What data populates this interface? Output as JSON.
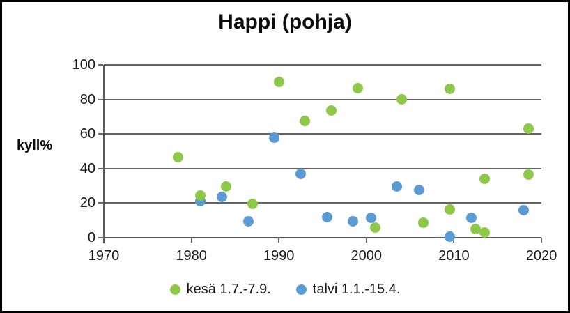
{
  "chart_data": {
    "type": "scatter",
    "title": "Happi (pohja)",
    "ylabel": "kyll%",
    "xlabel": "",
    "xlim": [
      1970,
      2020
    ],
    "ylim": [
      0,
      100
    ],
    "x_ticks": [
      1970,
      1980,
      1990,
      2000,
      2010,
      2020
    ],
    "y_ticks": [
      0,
      20,
      40,
      60,
      80,
      100
    ],
    "grid": "horizontal",
    "legend_position": "bottom",
    "grid_color": "#646464",
    "series": [
      {
        "name": "kesä 1.7.-7.9.",
        "color": "#8EC849",
        "points": [
          [
            1978.5,
            46.5
          ],
          [
            1981,
            24.5
          ],
          [
            1984,
            29.5
          ],
          [
            1987,
            19.5
          ],
          [
            1990,
            90
          ],
          [
            1993,
            67.5
          ],
          [
            1996,
            73.5
          ],
          [
            1999,
            86.5
          ],
          [
            2001,
            6
          ],
          [
            2004,
            80
          ],
          [
            2006.5,
            8.5
          ],
          [
            2009.5,
            86
          ],
          [
            2009.5,
            16.5
          ],
          [
            2012.5,
            5
          ],
          [
            2013.5,
            3
          ],
          [
            2013.5,
            34
          ],
          [
            2018.5,
            63
          ],
          [
            2018.5,
            36.5
          ]
        ]
      },
      {
        "name": "talvi 1.1.-15.4.",
        "color": "#5B9BD5",
        "points": [
          [
            1981,
            21
          ],
          [
            1983.5,
            23.5
          ],
          [
            1986.5,
            9.5
          ],
          [
            1989.5,
            58
          ],
          [
            1992.5,
            37
          ],
          [
            1995.5,
            12
          ],
          [
            1998.5,
            9.5
          ],
          [
            2000.5,
            11.5
          ],
          [
            2003.5,
            29.5
          ],
          [
            2006,
            27.5
          ],
          [
            2009.5,
            0.5
          ],
          [
            2012,
            11.5
          ],
          [
            2018,
            16
          ]
        ]
      }
    ]
  }
}
